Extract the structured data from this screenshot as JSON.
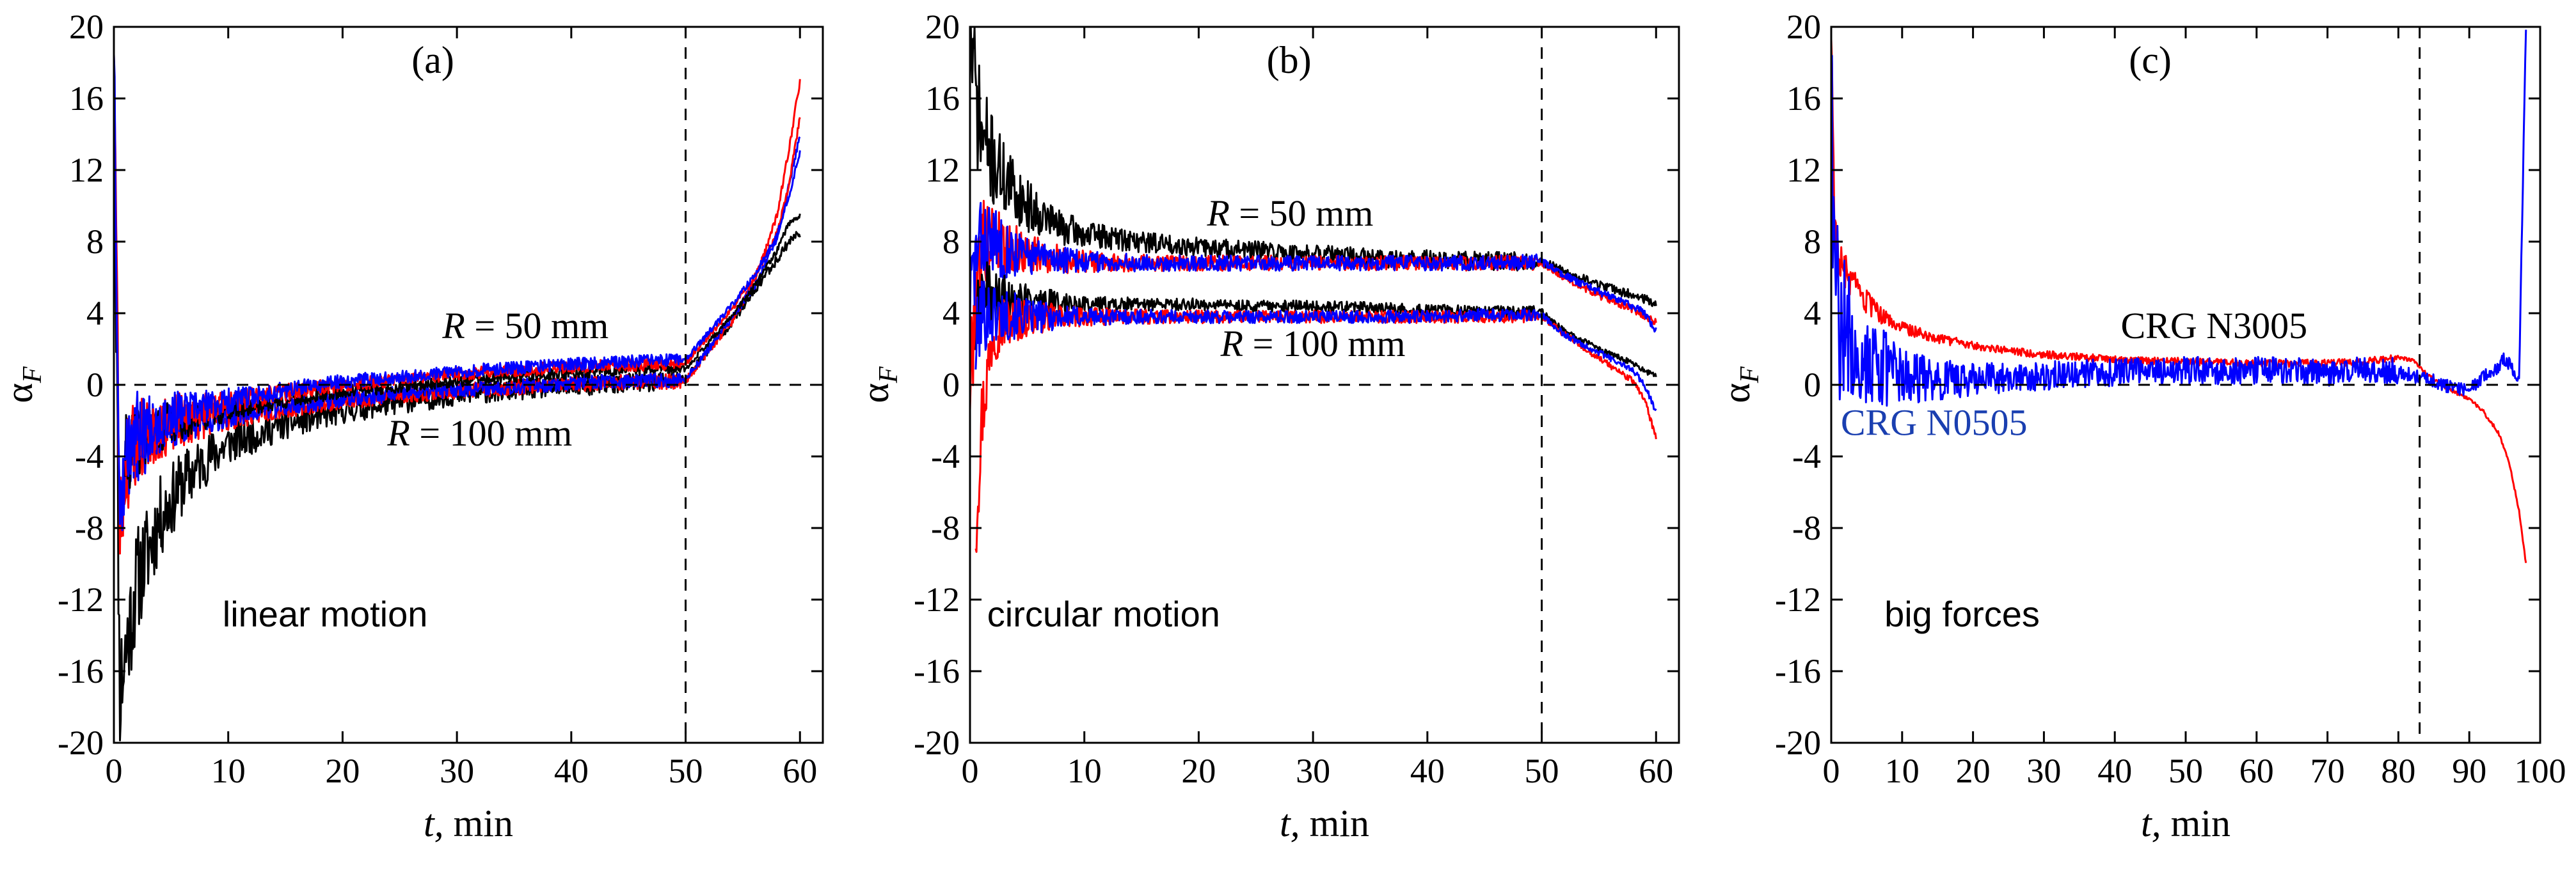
{
  "figure": {
    "colors": {
      "black": "#000000",
      "red": "#ff0000",
      "blue": "#0000ff"
    }
  },
  "chart_data": [
    {
      "type": "line",
      "panel_label": "(a)",
      "xlabel_italic": "t,",
      "xlabel_rest": " min",
      "ylabel_symbol": "α",
      "ylabel_sub": "F",
      "xlim": [
        0,
        62
      ],
      "ylim": [
        -20,
        20
      ],
      "xticks": [
        "0",
        "10",
        "20",
        "30",
        "40",
        "50",
        "60"
      ],
      "yticks": [
        "20",
        "16",
        "12",
        "8",
        "4",
        "0",
        "-4",
        "-8",
        "-12",
        "-16",
        "-20"
      ],
      "vline_x": 50,
      "hline_y": 0,
      "annotations": [
        {
          "id": "r50",
          "italic": "R",
          "rest": " = 50 mm",
          "x": 36,
          "y": 2.6
        },
        {
          "id": "r100",
          "italic": "R",
          "rest": " = 100 mm",
          "x": 32,
          "y": -3.4
        },
        {
          "id": "mode",
          "text": "linear motion",
          "x": 9.5,
          "y": -13.5
        }
      ],
      "series": [
        {
          "name": "black R=100",
          "color": "black",
          "noise": 1.6,
          "decay": 6,
          "seed": 11,
          "x": [
            0,
            0.5,
            1,
            2,
            4,
            6,
            8,
            10,
            15,
            20,
            25,
            30,
            35,
            40,
            45,
            50,
            52,
            54,
            56,
            57,
            58,
            59,
            60
          ],
          "y": [
            20,
            -17,
            -15,
            -11,
            -7.5,
            -5.5,
            -4.2,
            -3.3,
            -2.2,
            -1.5,
            -1.0,
            -0.6,
            -0.3,
            -0.1,
            0.1,
            0.3,
            2.0,
            3.5,
            5.2,
            6.2,
            7.0,
            8.0,
            8.5
          ]
        },
        {
          "name": "red R=100",
          "color": "red",
          "noise": 1.2,
          "decay": 5,
          "seed": 23,
          "x": [
            0,
            0.5,
            1,
            2,
            4,
            6,
            8,
            10,
            15,
            20,
            25,
            30,
            35,
            40,
            45,
            50,
            52,
            54,
            56,
            57,
            58,
            59,
            60
          ],
          "y": [
            20,
            -8,
            -5,
            -3.5,
            -2.6,
            -2.3,
            -2.0,
            -1.8,
            -1.3,
            -0.9,
            -0.6,
            -0.35,
            -0.15,
            0.05,
            0.15,
            0.2,
            1.9,
            3.5,
            5.8,
            7.5,
            9.5,
            13.0,
            17.0
          ]
        },
        {
          "name": "blue R=100",
          "color": "blue",
          "noise": 1.2,
          "decay": 5,
          "seed": 37,
          "x": [
            0,
            0.5,
            1,
            2,
            4,
            6,
            8,
            10,
            15,
            20,
            25,
            30,
            35,
            40,
            45,
            50,
            52,
            54,
            56,
            57,
            58,
            59,
            60
          ],
          "y": [
            20,
            -7,
            -4.5,
            -3.3,
            -2.5,
            -2.1,
            -1.9,
            -1.6,
            -1.2,
            -0.8,
            -0.5,
            -0.25,
            -0.1,
            0.1,
            0.2,
            0.3,
            2.0,
            3.7,
            5.5,
            6.8,
            8.2,
            11.0,
            14.0
          ]
        },
        {
          "name": "black R=50",
          "color": "black",
          "noise": 0.9,
          "decay": 5,
          "seed": 41,
          "x": [
            1,
            2,
            4,
            6,
            8,
            10,
            15,
            20,
            25,
            30,
            35,
            40,
            45,
            50,
            52,
            54,
            56,
            57,
            58,
            59,
            60
          ],
          "y": [
            -4,
            -3.2,
            -2.4,
            -2.0,
            -1.7,
            -1.4,
            -0.9,
            -0.4,
            -0.1,
            0.2,
            0.45,
            0.65,
            0.85,
            0.9,
            2.4,
            3.8,
            5.5,
            6.5,
            7.5,
            9.0,
            9.5
          ]
        },
        {
          "name": "red R=50",
          "color": "red",
          "noise": 1.0,
          "decay": 5,
          "seed": 53,
          "x": [
            1,
            2,
            4,
            6,
            8,
            10,
            15,
            20,
            25,
            30,
            35,
            40,
            45,
            50,
            52,
            54,
            56,
            57,
            58,
            59,
            60
          ],
          "y": [
            -3,
            -2.6,
            -2.0,
            -1.6,
            -1.3,
            -1.0,
            -0.4,
            0.0,
            0.3,
            0.6,
            0.8,
            1.0,
            1.1,
            1.2,
            2.7,
            4.2,
            6.0,
            7.2,
            8.5,
            11.0,
            15.0
          ]
        },
        {
          "name": "blue R=50",
          "color": "blue",
          "noise": 1.0,
          "decay": 5,
          "seed": 67,
          "x": [
            1,
            2,
            4,
            6,
            8,
            10,
            15,
            20,
            25,
            30,
            35,
            40,
            45,
            50,
            52,
            54,
            56,
            57,
            58,
            59,
            60
          ],
          "y": [
            -3,
            -2.4,
            -1.9,
            -1.5,
            -1.2,
            -0.9,
            -0.3,
            0.2,
            0.45,
            0.75,
            0.95,
            1.15,
            1.3,
            1.4,
            2.9,
            4.4,
            6.1,
            7.2,
            8.4,
            10.5,
            13.0
          ]
        }
      ]
    },
    {
      "type": "line",
      "panel_label": "(b)",
      "xlabel_italic": "t,",
      "xlabel_rest": " min",
      "ylabel_symbol": "α",
      "ylabel_sub": "F",
      "xlim": [
        0,
        62
      ],
      "ylim": [
        -20,
        20
      ],
      "xticks": [
        "0",
        "10",
        "20",
        "30",
        "40",
        "50",
        "60"
      ],
      "yticks": [
        "20",
        "16",
        "12",
        "8",
        "4",
        "0",
        "-4",
        "-8",
        "-12",
        "-16",
        "-20"
      ],
      "vline_x": 50,
      "hline_y": 0,
      "annotations": [
        {
          "id": "r50",
          "italic": "R",
          "rest": " = 50 mm",
          "x": 28,
          "y": 8.9
        },
        {
          "id": "r100",
          "italic": "R",
          "rest": " = 100 mm",
          "x": 30,
          "y": 1.6
        },
        {
          "id": "mode",
          "text": "circular motion",
          "x": 1.5,
          "y": -13.5
        }
      ],
      "series": [
        {
          "name": "black R=50",
          "color": "black",
          "noise": 1.5,
          "decay": 4,
          "seed": 71,
          "x": [
            0,
            0.5,
            1,
            2,
            3,
            5,
            8,
            10,
            15,
            20,
            25,
            30,
            35,
            40,
            45,
            50,
            52,
            55,
            58,
            59,
            60
          ],
          "y": [
            20,
            16,
            14,
            12.5,
            11.5,
            10,
            8.8,
            8.4,
            8.0,
            7.7,
            7.5,
            7.3,
            7.1,
            7.0,
            6.9,
            6.9,
            6.3,
            5.6,
            5.0,
            4.8,
            4.5
          ]
        },
        {
          "name": "red R=50",
          "color": "red",
          "noise": 1.2,
          "decay": 4,
          "seed": 79,
          "x": [
            0,
            0.5,
            1,
            2,
            3,
            5,
            8,
            10,
            15,
            20,
            25,
            30,
            35,
            40,
            45,
            50,
            52,
            55,
            58,
            59,
            60
          ],
          "y": [
            0,
            5,
            8,
            8.2,
            7.8,
            7.3,
            7.0,
            6.9,
            6.8,
            6.8,
            6.8,
            6.8,
            6.8,
            6.8,
            6.8,
            6.8,
            6.0,
            5.0,
            4.2,
            3.8,
            3.5
          ]
        },
        {
          "name": "blue R=50",
          "color": "blue",
          "noise": 1.2,
          "decay": 4,
          "seed": 83,
          "x": [
            0,
            0.5,
            1,
            2,
            3,
            5,
            8,
            10,
            15,
            20,
            25,
            30,
            35,
            40,
            45,
            50,
            52,
            55,
            58,
            59,
            60
          ],
          "y": [
            5,
            7,
            8,
            8.0,
            7.6,
            7.2,
            7.0,
            6.9,
            6.8,
            6.8,
            6.8,
            6.8,
            6.8,
            6.8,
            6.8,
            6.9,
            6.1,
            5.2,
            4.4,
            4.0,
            3.0
          ]
        },
        {
          "name": "black R=100",
          "color": "black",
          "noise": 0.9,
          "decay": 4,
          "seed": 89,
          "x": [
            0.5,
            1,
            2,
            3,
            5,
            8,
            10,
            15,
            20,
            25,
            30,
            35,
            40,
            45,
            50,
            52,
            55,
            58,
            59,
            60
          ],
          "y": [
            3,
            5,
            5.0,
            4.9,
            4.7,
            4.6,
            4.5,
            4.5,
            4.5,
            4.4,
            4.4,
            4.3,
            4.2,
            4.1,
            4.1,
            3.0,
            2.0,
            1.2,
            0.8,
            0.5
          ]
        },
        {
          "name": "red R=100",
          "color": "red",
          "noise": 1.0,
          "decay": 4,
          "seed": 97,
          "x": [
            0.5,
            1,
            2,
            3,
            5,
            8,
            10,
            15,
            20,
            25,
            30,
            35,
            40,
            45,
            50,
            52,
            55,
            58,
            59,
            60
          ],
          "y": [
            -8,
            -2,
            3,
            3.5,
            3.7,
            3.8,
            3.8,
            3.8,
            3.8,
            3.8,
            3.8,
            3.8,
            3.8,
            3.8,
            3.8,
            2.8,
            1.5,
            0.2,
            -0.8,
            -3.0
          ]
        },
        {
          "name": "blue R=100",
          "color": "blue",
          "noise": 1.0,
          "decay": 4,
          "seed": 101,
          "x": [
            0.5,
            1,
            2,
            3,
            5,
            8,
            10,
            15,
            20,
            25,
            30,
            35,
            40,
            45,
            50,
            52,
            55,
            58,
            59,
            60
          ],
          "y": [
            2,
            4,
            4.0,
            3.9,
            3.8,
            3.8,
            3.8,
            3.8,
            3.8,
            3.8,
            3.8,
            3.8,
            3.8,
            3.9,
            3.9,
            2.8,
            1.8,
            0.8,
            0.0,
            -1.5
          ]
        }
      ]
    },
    {
      "type": "line",
      "panel_label": "(c)",
      "xlabel_italic": "t,",
      "xlabel_rest": " min",
      "ylabel_symbol": "α",
      "ylabel_sub": "F",
      "xlim": [
        0,
        100
      ],
      "ylim": [
        -20,
        20
      ],
      "xticks": [
        "0",
        "10",
        "20",
        "30",
        "40",
        "50",
        "60",
        "70",
        "80",
        "90",
        "100"
      ],
      "yticks": [
        "20",
        "16",
        "12",
        "8",
        "4",
        "0",
        "-4",
        "-8",
        "-12",
        "-16",
        "-20"
      ],
      "vline_x": 83,
      "hline_y": 0,
      "annotations": [
        {
          "id": "n3005",
          "text": "CRG N3005",
          "x": 54,
          "y": 2.6
        },
        {
          "id": "n0505",
          "text": "CRG N0505",
          "x": 14.5,
          "y": -2.8
        },
        {
          "id": "mode",
          "text": "big forces",
          "x": 7.5,
          "y": -13.5
        }
      ],
      "series": [
        {
          "name": "CRG N3005",
          "color": "red",
          "noise": 0.6,
          "decay": 5,
          "seed": 103,
          "x": [
            0,
            0.5,
            1,
            2,
            4,
            6,
            8,
            10,
            15,
            20,
            25,
            30,
            40,
            50,
            60,
            70,
            75,
            80,
            82,
            84,
            86,
            88,
            90,
            92,
            94,
            95,
            96,
            97,
            97.5,
            98
          ],
          "y": [
            20,
            9,
            7,
            6.2,
            5,
            4.2,
            3.6,
            3.2,
            2.6,
            2.2,
            1.9,
            1.7,
            1.4,
            1.3,
            1.2,
            1.2,
            1.3,
            1.5,
            1.4,
            0.6,
            0.0,
            -0.4,
            -0.8,
            -1.5,
            -2.6,
            -3.6,
            -5.0,
            -7.0,
            -8.5,
            -10
          ]
        },
        {
          "name": "CRG N0505",
          "color": "blue",
          "noise": 2.2,
          "decay": 6,
          "seed": 107,
          "x": [
            0,
            0.5,
            1,
            2,
            4,
            6,
            8,
            10,
            15,
            20,
            25,
            30,
            40,
            50,
            60,
            70,
            75,
            80,
            82,
            85,
            88,
            90,
            92,
            94,
            95,
            96,
            97,
            98
          ],
          "y": [
            15,
            6,
            4,
            3,
            1.8,
            1.2,
            0.8,
            0.5,
            0.3,
            0.3,
            0.4,
            0.5,
            0.7,
            0.8,
            0.8,
            0.7,
            0.8,
            0.8,
            0.5,
            0.2,
            -0.2,
            -0.3,
            0.5,
            1.0,
            1.5,
            1.0,
            0.0,
            20
          ]
        }
      ]
    }
  ]
}
